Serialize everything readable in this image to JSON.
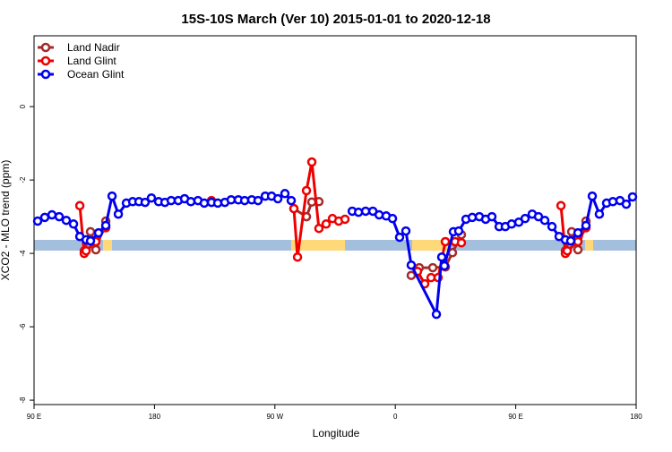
{
  "chart_data": {
    "type": "line",
    "title": "15S-10S March (Ver 10)   2015-01-01 to 2020-12-18",
    "x_label": "Longitude",
    "y_label": "XCO2 - MLO trend (ppm)",
    "xlim": [
      90,
      540
    ],
    "ylim": [
      -8.12,
      1.93
    ],
    "xticks": [
      {
        "value": 90,
        "label": "90 E"
      },
      180,
      {
        "value": 270,
        "label": "90 W"
      },
      {
        "value": 360,
        "label": "0"
      },
      {
        "value": 450,
        "label": "90 E"
      },
      {
        "value": 540,
        "label": "180"
      }
    ],
    "yticks": [
      0,
      -2,
      -4,
      -6,
      -8
    ],
    "legend": "top-left",
    "series": [
      {
        "name": "Land Nadir",
        "color": "#a52a2a",
        "x": [
          127.5,
          132.2,
          136.2,
          143.6,
          null,
          284.2,
          293.6,
          297.6,
          302.9,
          null,
          371.9,
          377.9,
          388,
          397.4,
          402.7,
          409.4,
          null,
          487.1,
          491.8,
          496.5,
          502.5
        ],
        "values": [
          -3.93,
          -3.41,
          -3.9,
          -3.12,
          null,
          -2.78,
          -3.0,
          -2.6,
          -2.59,
          null,
          -4.6,
          -4.39,
          -4.39,
          -4.37,
          -3.98,
          -3.49,
          null,
          -3.93,
          -3.41,
          -3.9,
          -3.12
        ]
      },
      {
        "name": "Land Glint",
        "color": "#ee0000",
        "x": [
          124.2,
          127.5,
          128.9,
          136.2,
          143.6,
          null,
          222.6,
          null,
          284.2,
          286.9,
          293.6,
          297.6,
          302.9,
          308.3,
          313,
          317.7,
          322.4,
          null,
          376.6,
          382,
          386.7,
          392,
          397.4,
          404.7,
          409.4,
          null,
          483.8,
          487.1,
          488.5,
          496.5,
          502.5
        ],
        "values": [
          -2.7,
          -4.0,
          -3.93,
          -3.68,
          -3.3,
          null,
          -2.56,
          null,
          -2.78,
          -4.1,
          -2.29,
          -1.51,
          -3.32,
          -3.2,
          -3.05,
          -3.12,
          -3.07,
          null,
          -4.49,
          -4.83,
          -4.66,
          -4.66,
          -3.68,
          -3.68,
          -3.71,
          null,
          -2.7,
          -4.0,
          -3.93,
          -3.68,
          -3.3
        ]
      },
      {
        "name": "Ocean Glint",
        "color": "#0000ee",
        "x": [
          92.7,
          98,
          103.4,
          108.8,
          114.1,
          119.5,
          124.2,
          128.9,
          132.2,
          138.2,
          143.6,
          148.3,
          153,
          159,
          163.7,
          168.4,
          173,
          177.7,
          183.1,
          187.8,
          192.5,
          197.8,
          202.5,
          207.2,
          212.5,
          217.2,
          222.6,
          227.3,
          232.6,
          237.3,
          242.7,
          247.4,
          252.7,
          257.4,
          262.8,
          267.5,
          272.2,
          277.5,
          282.2,
          null,
          327.8,
          332.5,
          337.8,
          343.2,
          347.9,
          353.2,
          357.9,
          363.2,
          367.9,
          371.9,
          390.7,
          394.7,
          396.7,
          403.4,
          407.4,
          412.8,
          417.5,
          422.8,
          427.5,
          432.2,
          437.6,
          442.2,
          446.9,
          452.3,
          457,
          462.3,
          467,
          471.7,
          477.1,
          482.4,
          487.1,
          491.1,
          496.5,
          502.5,
          507.2,
          512.5,
          517.9,
          522.6,
          527.9,
          532.6,
          537.3
        ],
        "values": [
          -3.12,
          -3.02,
          -2.95,
          -3.0,
          -3.1,
          -3.2,
          -3.54,
          -3.63,
          -3.66,
          -3.44,
          -3.24,
          -2.44,
          -2.93,
          -2.63,
          -2.59,
          -2.59,
          -2.61,
          -2.49,
          -2.59,
          -2.61,
          -2.56,
          -2.56,
          -2.51,
          -2.59,
          -2.56,
          -2.63,
          -2.61,
          -2.63,
          -2.61,
          -2.54,
          -2.54,
          -2.56,
          -2.54,
          -2.56,
          -2.44,
          -2.44,
          -2.51,
          -2.37,
          -2.56,
          null,
          -2.85,
          -2.88,
          -2.85,
          -2.85,
          -2.95,
          -2.98,
          -3.05,
          -3.56,
          -3.39,
          -4.32,
          -5.66,
          -4.1,
          -4.34,
          -3.41,
          -3.39,
          -3.07,
          -3.02,
          -3.0,
          -3.07,
          -3.0,
          -3.27,
          -3.27,
          -3.2,
          -3.15,
          -3.05,
          -2.93,
          -3.0,
          -3.1,
          -3.27,
          -3.54,
          -3.63,
          -3.66,
          -3.44,
          -3.24,
          -2.44,
          -2.93,
          -2.63,
          -2.59,
          -2.56,
          -2.66,
          -2.46
        ]
      }
    ]
  }
}
